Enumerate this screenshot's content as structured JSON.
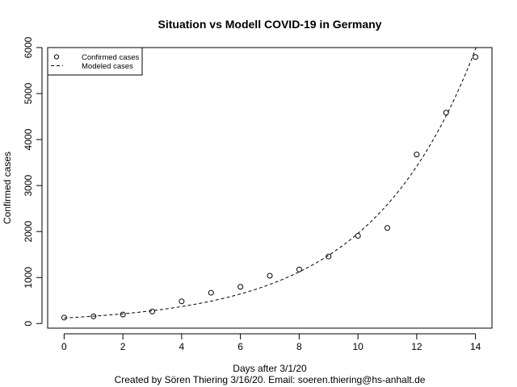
{
  "chart_data": {
    "type": "scatter",
    "title": "Situation vs Modell COVID-19 in Germany",
    "xlabel": "Days after 3/1/20",
    "ylabel": "Confirmed cases",
    "caption": "Created by Sören Thiering 3/16/20. Email: soeren.thiering@hs-anhalt.de",
    "xlim": [
      -0.56,
      14.56
    ],
    "ylim": [
      -100,
      6000
    ],
    "xticks": [
      0,
      2,
      4,
      6,
      8,
      10,
      12,
      14
    ],
    "yticks": [
      0,
      1000,
      2000,
      3000,
      4000,
      5000,
      6000
    ],
    "grid": false,
    "legend_position": "top-left",
    "series": [
      {
        "name": "Confirmed cases",
        "type": "scatter",
        "marker": "open-circle",
        "x": [
          0,
          1,
          2,
          3,
          4,
          5,
          6,
          7,
          8,
          9,
          10,
          11,
          12,
          13,
          14
        ],
        "y": [
          129,
          157,
          196,
          262,
          482,
          670,
          799,
          1040,
          1176,
          1457,
          1908,
          2078,
          3675,
          4585,
          5795
        ]
      },
      {
        "name": "Modeled cases",
        "type": "line",
        "style": "dashed",
        "model": "exponential",
        "a": 121.2,
        "b": 0.2783,
        "x_range": [
          0,
          14.56
        ]
      }
    ]
  }
}
